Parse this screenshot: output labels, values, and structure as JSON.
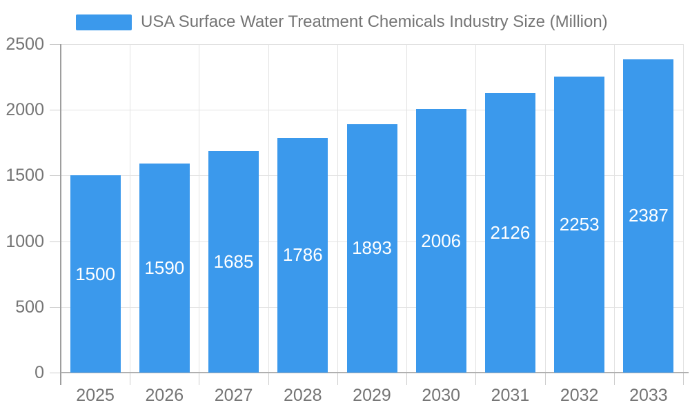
{
  "chart_data": {
    "type": "bar",
    "title": "USA Surface Water Treatment Chemicals Industry Size (Million)",
    "legend": {
      "position": "top",
      "entries": [
        "USA Surface Water Treatment Chemicals Industry Size (Million)"
      ]
    },
    "categories": [
      "2025",
      "2026",
      "2027",
      "2028",
      "2029",
      "2030",
      "2031",
      "2032",
      "2033"
    ],
    "values": [
      1500,
      1590,
      1685,
      1786,
      1893,
      2006,
      2126,
      2253,
      2387
    ],
    "xlabel": "",
    "ylabel": "",
    "ylim": [
      0,
      2500
    ],
    "y_ticks": [
      0,
      500,
      1000,
      1500,
      2000,
      2500
    ],
    "grid": true,
    "value_labels": "inside-center",
    "colors": {
      "bar": "#3B99EC",
      "axis_text": "#757575",
      "title_text": "#757575",
      "value_label_text": "#ffffff",
      "gridline": "#e2e2e2",
      "axis_line": "#b0b0b0",
      "background": "#ffffff"
    }
  }
}
